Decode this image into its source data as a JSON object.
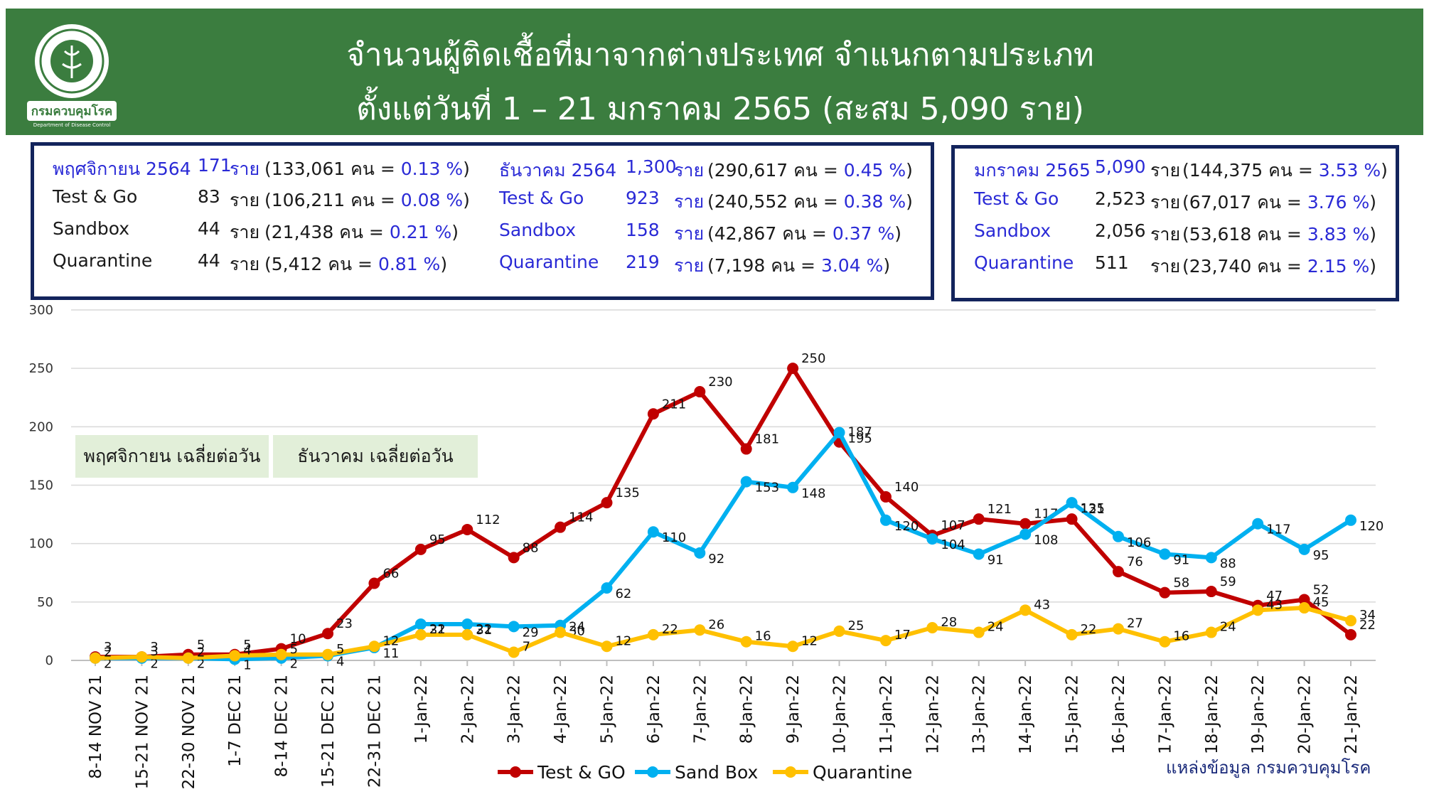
{
  "header": {
    "title_line1": "จำนวนผู้ติดเชื้อที่มาจากต่างประเทศ จำแนกตามประเภท",
    "title_line2": "ตั้งแต่วันที่  1 – 21  มกราคม  2565 (สะสม 5,090 ราย)",
    "logo_text": "กรมควบคุมโรค",
    "logo_subtext": "Department of Disease Control"
  },
  "summary_boxes": [
    {
      "rows": [
        {
          "label": "พฤศจิกายน 2564",
          "count": "171",
          "unit": "ราย",
          "detail": "(133,061 คน = ",
          "pct": "0.13 %",
          "close": ")"
        },
        {
          "label": "Test & Go",
          "count": "83",
          "unit": "ราย",
          "detail": "(106,211 คน = ",
          "pct": "0.08 %",
          "close": ")"
        },
        {
          "label": "Sandbox",
          "count": "44",
          "unit": "ราย",
          "detail": "(21,438 คน  = ",
          "pct": "0.21 %",
          "close": ")"
        },
        {
          "label": "Quarantine",
          "count": "44",
          "unit": "ราย",
          "detail": "(5,412 คน    = ",
          "pct": "0.81 %",
          "close": ")"
        }
      ]
    },
    {
      "rows": [
        {
          "label": "ธันวาคม 2564",
          "count": "1,300",
          "unit": "ราย",
          "detail": "(290,617 คน = ",
          "pct": "0.45 %",
          "close": ")"
        },
        {
          "label": "Test & Go",
          "count": "923",
          "unit": "ราย",
          "detail": "(240,552 คน = ",
          "pct": "0.38 %",
          "close": ")"
        },
        {
          "label": "Sandbox",
          "count": "158",
          "unit": "ราย",
          "detail": "(42,867 คน    = ",
          "pct": "0.37 %",
          "close": ")"
        },
        {
          "label": "Quarantine",
          "count": "219",
          "unit": "ราย",
          "detail": "(7,198 คน      = ",
          "pct": "3.04 %",
          "close": ")"
        }
      ]
    },
    {
      "rows": [
        {
          "label": "มกราคม 2565",
          "count": "5,090",
          "unit": "ราย",
          "detail": "(144,375 คน = ",
          "pct": "3.53 %",
          "close": ")"
        },
        {
          "label": "Test & Go",
          "count": "2,523",
          "unit": "ราย",
          "detail": "(67,017 คน = ",
          "pct": "3.76 %",
          "close": ")"
        },
        {
          "label": "Sandbox",
          "count": "2,056",
          "unit": "ราย",
          "detail": "(53,618 คน = ",
          "pct": "3.83 %",
          "close": ")"
        },
        {
          "label": "Quarantine",
          "count": "511",
          "unit": "ราย",
          "detail": "(23,740 คน = ",
          "pct": "2.15 %",
          "close": ")"
        }
      ]
    }
  ],
  "avg_labels": [
    "พฤศจิกายน เฉลี่ยต่อวัน",
    "ธันวาคม เฉลี่ยต่อวัน"
  ],
  "source_note": "แหล่งข้อมูล กรมควบคุมโรค",
  "chart_data": {
    "type": "line",
    "ylim": [
      0,
      300
    ],
    "yticks": [
      0,
      50,
      100,
      150,
      200,
      250,
      300
    ],
    "grid": true,
    "legend_position": "bottom",
    "categories": [
      "8-14 NOV 21",
      "15-21 NOV 21",
      "22-30 NOV 21",
      "1-7 DEC 21",
      "8-14 DEC 21",
      "15-21 DEC 21",
      "22-31 DEC 21",
      "1-Jan-22",
      "2-Jan-22",
      "3-Jan-22",
      "4-Jan-22",
      "5-Jan-22",
      "6-Jan-22",
      "7-Jan-22",
      "8-Jan-22",
      "9-Jan-22",
      "10-Jan-22",
      "11-Jan-22",
      "12-Jan-22",
      "13-Jan-22",
      "14-Jan-22",
      "15-Jan-22",
      "16-Jan-22",
      "17-Jan-22",
      "18-Jan-22",
      "19-Jan-22",
      "20-Jan-22",
      "21-Jan-22"
    ],
    "series": [
      {
        "name": "Test & GO",
        "color": "#c00000",
        "values": [
          3,
          3,
          5,
          5,
          10,
          23,
          66,
          95,
          112,
          88,
          114,
          135,
          211,
          230,
          181,
          250,
          187,
          140,
          107,
          121,
          117,
          121,
          76,
          58,
          59,
          47,
          52,
          22
        ]
      },
      {
        "name": "Sand Box",
        "color": "#00b0f0",
        "values": [
          2,
          2,
          2,
          1,
          2,
          4,
          11,
          31,
          31,
          29,
          30,
          62,
          110,
          92,
          153,
          148,
          195,
          120,
          104,
          91,
          108,
          135,
          106,
          91,
          88,
          117,
          95,
          120
        ]
      },
      {
        "name": "Quarantine",
        "color": "#ffc000",
        "values": [
          2,
          3,
          2,
          4,
          5,
          5,
          12,
          22,
          22,
          7,
          24,
          12,
          22,
          26,
          16,
          12,
          25,
          17,
          28,
          24,
          43,
          22,
          27,
          16,
          24,
          43,
          45,
          34
        ]
      }
    ]
  }
}
